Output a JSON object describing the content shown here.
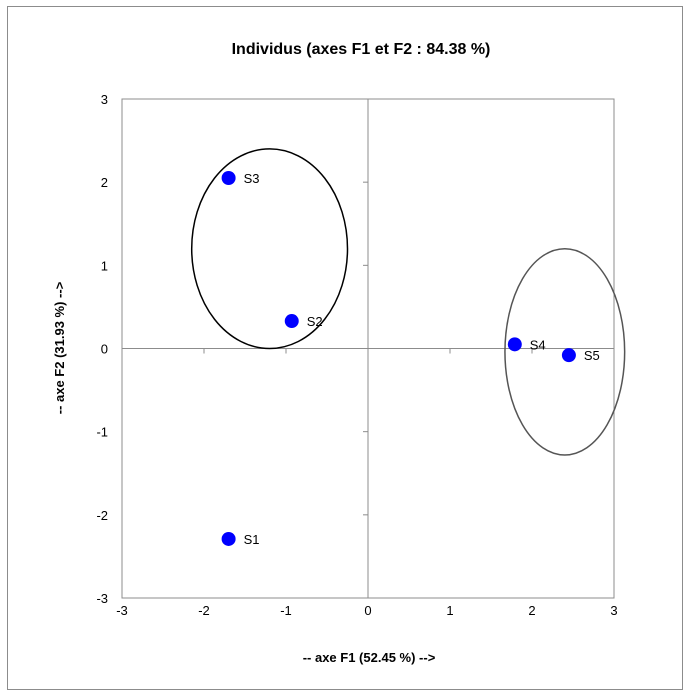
{
  "chart_data": {
    "type": "scatter",
    "title": "Individus (axes F1 et F2 : 84.38 %)",
    "xlabel": "-- axe F1 (52.45 %) -->",
    "ylabel": "-- axe F2 (31.93 %) -->",
    "xlim": [
      -3,
      3
    ],
    "ylim": [
      -3,
      3
    ],
    "xticks": [
      "-3",
      "-2",
      "-1",
      "0",
      "1",
      "2",
      "3"
    ],
    "yticks": [
      "3",
      "2",
      "1",
      "0",
      "-1",
      "-2",
      "-3"
    ],
    "grid": false,
    "point_color": "#0000ff",
    "points": [
      {
        "label": "S1",
        "x": -1.7,
        "y": -2.29
      },
      {
        "label": "S2",
        "x": -0.93,
        "y": 0.33
      },
      {
        "label": "S3",
        "x": -1.7,
        "y": 2.05
      },
      {
        "label": "S4",
        "x": 1.79,
        "y": 0.05
      },
      {
        "label": "S5",
        "x": 2.45,
        "y": -0.08
      }
    ],
    "ellipses": [
      {
        "cx": -1.2,
        "cy": 1.2,
        "rx": 0.95,
        "ry": 1.2,
        "color": "#000000"
      },
      {
        "cx": 2.4,
        "cy": -0.04,
        "rx": 0.73,
        "ry": 1.24,
        "color": "#555555"
      }
    ]
  }
}
